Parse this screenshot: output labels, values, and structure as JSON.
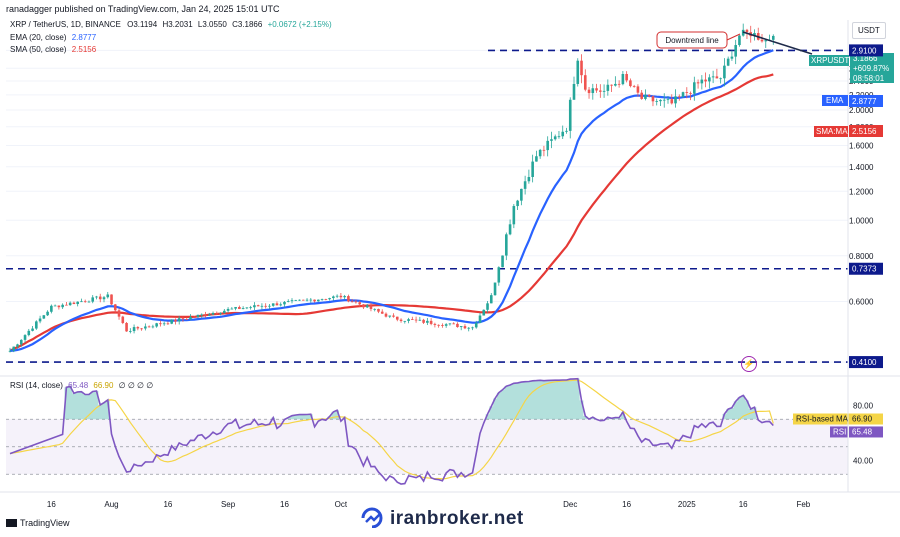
{
  "header": {
    "published": "ranadagger published on TradingView.com, Jan 24, 2025 15:01 UTC"
  },
  "legend": {
    "symbol": "XRP / TetherUS, 1D, BINANCE",
    "open": "O3.1194",
    "high": "H3.2031",
    "low": "L3.0550",
    "close": "C3.1866",
    "change": "+0.0672 (+2.15%)",
    "ema_label": "EMA (20, close)",
    "ema_value": "2.8777",
    "sma_label": "SMA (50, close)",
    "sma_value": "2.5156"
  },
  "price_axis": {
    "currency": "USDT"
  },
  "badges": {
    "symbol_name": "XRPUSDT",
    "price": "3.1866",
    "pct": "+609.87%",
    "countdown": "08:58:01",
    "level_2910": "2.9100",
    "ema_tag": "EMA",
    "ema_val": "2.8777",
    "sma_tag": "SMA:MA",
    "sma_val": "2.5156",
    "level_0737": "0.7373",
    "level_0410": "0.4100"
  },
  "annotations": {
    "downtrend": "Downtrend line"
  },
  "rsi": {
    "legend": "RSI (14, close)",
    "value": "65.48",
    "ma_value": "66.90",
    "extras": "∅ ∅ ∅ ∅",
    "ma_tag": "RSI-based MA",
    "ma_tag_val": "66.90",
    "rsi_tag": "RSI",
    "rsi_tag_val": "65.48"
  },
  "footer": {
    "brand": "TradingView",
    "watermark": "iranbroker.net"
  },
  "colors": {
    "up": "#26a69a",
    "down": "#ef5350",
    "ema": "#2962ff",
    "sma": "#e53935",
    "rsi": "#7e57c2",
    "rsi_ma": "#f5d547",
    "level": "#0d1a8c"
  },
  "chart_data": {
    "type": "candlestick",
    "title": "XRP / TetherUS, 1D, BINANCE",
    "xlabel": "",
    "ylabel": "USDT",
    "y_scale": "log",
    "y_ticks": [
      "0.4100",
      "0.6000",
      "0.8000",
      "1.0000",
      "1.2000",
      "1.4000",
      "1.6000",
      "1.8000",
      "2.0000",
      "2.2000",
      "2.4000",
      "2.6000",
      "2.9100"
    ],
    "x_ticks": [
      "16",
      "Aug",
      "16",
      "Sep",
      "16",
      "Oct",
      "Dec",
      "16",
      "2025",
      "16",
      "Feb"
    ],
    "horizontal_levels": [
      2.91,
      0.7373,
      0.41
    ],
    "last_close": 3.1866,
    "series": [
      {
        "name": "EMA (20, close)",
        "last": 2.8777
      },
      {
        "name": "SMA (50, close)",
        "last": 2.5156
      }
    ],
    "anchors": [
      {
        "date": "2024-07-05",
        "price": 0.44
      },
      {
        "date": "2024-07-16",
        "price": 0.58
      },
      {
        "date": "2024-07-31",
        "price": 0.62
      },
      {
        "date": "2024-08-05",
        "price": 0.5
      },
      {
        "date": "2024-09-01",
        "price": 0.57
      },
      {
        "date": "2024-10-01",
        "price": 0.62
      },
      {
        "date": "2024-10-15",
        "price": 0.54
      },
      {
        "date": "2024-11-05",
        "price": 0.51
      },
      {
        "date": "2024-11-10",
        "price": 0.62
      },
      {
        "date": "2024-11-16",
        "price": 1.1
      },
      {
        "date": "2024-11-22",
        "price": 1.5
      },
      {
        "date": "2024-11-30",
        "price": 1.8
      },
      {
        "date": "2024-12-03",
        "price": 2.8
      },
      {
        "date": "2024-12-05",
        "price": 2.3
      },
      {
        "date": "2024-12-10",
        "price": 2.25
      },
      {
        "date": "2024-12-15",
        "price": 2.45
      },
      {
        "date": "2024-12-20",
        "price": 2.15
      },
      {
        "date": "2024-12-28",
        "price": 2.08
      },
      {
        "date": "2025-01-05",
        "price": 2.4
      },
      {
        "date": "2025-01-10",
        "price": 2.45
      },
      {
        "date": "2025-01-15",
        "price": 3.2
      },
      {
        "date": "2025-01-18",
        "price": 3.25
      },
      {
        "date": "2025-01-22",
        "price": 3.1
      },
      {
        "date": "2025-01-24",
        "price": 3.19
      }
    ],
    "rsi": {
      "levels": [
        80,
        60,
        40
      ],
      "last": 65.48,
      "ma_last": 66.9
    }
  }
}
